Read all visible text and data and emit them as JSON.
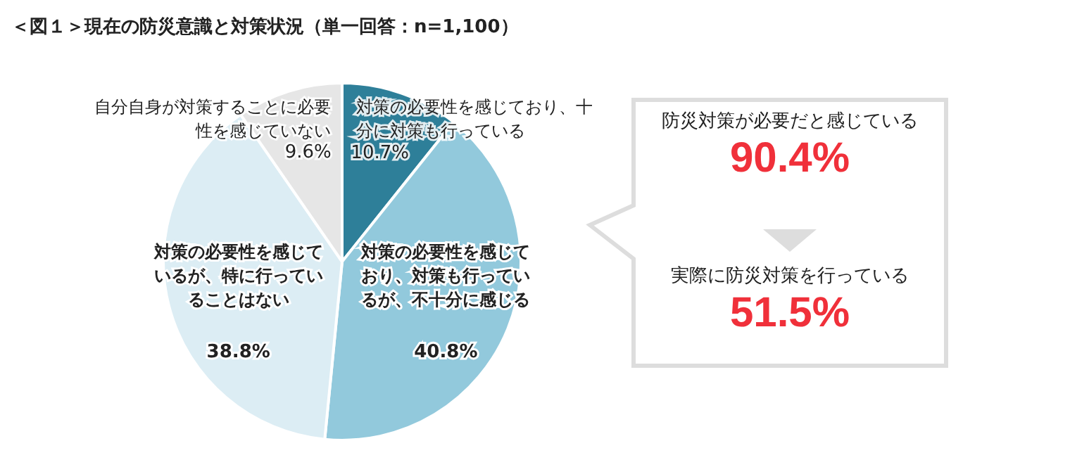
{
  "chart_data": {
    "type": "pie",
    "title": "＜図１＞現在の防災意識と対策状況（単一回答：n=1,100）",
    "categories": [
      "対策の必要性を感じており、十分に対策も行っている",
      "対策の必要性を感じており、対策も行っているが、不十分に感じる",
      "対策の必要性を感じているが、特に行っていることはない",
      "自分自身が対策することに必要性を感じていない"
    ],
    "values": [
      10.7,
      40.8,
      38.8,
      9.6
    ],
    "value_labels": [
      "10.7%",
      "40.8%",
      "38.8%",
      "9.6%"
    ],
    "colors": [
      "#2e7f99",
      "#92c9dc",
      "#dcedf4",
      "#e6e6e6"
    ],
    "legend": false,
    "annotations": [
      "防災対策が必要だと感じている",
      "90.4%",
      "実際に防災対策を行っている",
      "51.5%"
    ]
  }
}
